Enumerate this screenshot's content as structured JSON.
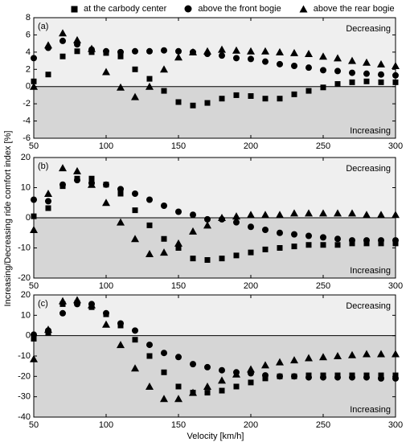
{
  "chart_data": {
    "ylabel": "Increasing/Decreasing ride comfort index [%]",
    "xlabel": "Velocity [km/h]",
    "legend": [
      {
        "name": "at the carbody center",
        "marker": "square"
      },
      {
        "name": "above the front bogie",
        "marker": "circle"
      },
      {
        "name": "above the rear bogie",
        "marker": "triangle"
      }
    ],
    "colors": {
      "upper_region": "#efefef",
      "lower_region": "#d6d6d6",
      "marker": "#000000"
    },
    "panels": [
      {
        "type": "scatter",
        "panel_label": "(a)",
        "upper_text": "Decreasing",
        "lower_text": "Increasing",
        "xlim": [
          50,
          300
        ],
        "ylim": [
          -6,
          8
        ],
        "x_ticks": [
          50,
          100,
          150,
          200,
          250,
          300
        ],
        "y_ticks": [
          -6,
          -4,
          -2,
          0,
          2,
          4,
          6,
          8
        ],
        "x": [
          50,
          60,
          70,
          80,
          90,
          100,
          110,
          120,
          130,
          140,
          150,
          160,
          170,
          180,
          190,
          200,
          210,
          220,
          230,
          240,
          250,
          260,
          270,
          280,
          290,
          300
        ],
        "series": [
          {
            "name": "at the carbody center",
            "marker": "square",
            "values": [
              0.6,
              1.4,
              3.5,
              4.1,
              4.0,
              3.9,
              3.5,
              2.0,
              0.9,
              -0.5,
              -1.8,
              -2.2,
              -1.9,
              -1.4,
              -1.0,
              -1.1,
              -1.4,
              -1.4,
              -0.9,
              -0.5,
              -0.1,
              0.3,
              0.5,
              0.6,
              0.5,
              0.5
            ]
          },
          {
            "name": "above the front bogie",
            "marker": "circle",
            "values": [
              3.3,
              4.5,
              5.3,
              4.9,
              4.3,
              4.1,
              4.0,
              4.1,
              4.1,
              4.2,
              4.1,
              4.0,
              3.8,
              3.6,
              3.3,
              3.2,
              2.9,
              2.6,
              2.4,
              2.2,
              1.9,
              1.8,
              1.6,
              1.5,
              1.4,
              1.3
            ]
          },
          {
            "name": "above the rear bogie",
            "marker": "triangle",
            "values": [
              0.0,
              4.8,
              6.2,
              5.4,
              4.4,
              1.7,
              -0.1,
              -1.2,
              0.0,
              2.0,
              3.4,
              4.0,
              4.1,
              4.3,
              4.2,
              4.1,
              4.1,
              4.0,
              3.9,
              3.8,
              3.5,
              3.3,
              3.0,
              2.8,
              2.6,
              2.4
            ]
          }
        ]
      },
      {
        "type": "scatter",
        "panel_label": "(b)",
        "upper_text": "Decreasing",
        "lower_text": "Increasing",
        "xlim": [
          50,
          300
        ],
        "ylim": [
          -20,
          20
        ],
        "x_ticks": [
          50,
          100,
          150,
          200,
          250,
          300
        ],
        "y_ticks": [
          -20,
          -10,
          0,
          10,
          20
        ],
        "x": [
          50,
          60,
          70,
          80,
          90,
          100,
          110,
          120,
          130,
          140,
          150,
          160,
          170,
          180,
          190,
          200,
          210,
          220,
          230,
          240,
          250,
          260,
          270,
          280,
          290,
          300
        ],
        "series": [
          {
            "name": "at the carbody center",
            "marker": "square",
            "values": [
              0.5,
              3.2,
              10.5,
              13.0,
              13.0,
              11.0,
              8.0,
              2.5,
              -2.5,
              -7.0,
              -10.0,
              -13.5,
              -14.0,
              -13.5,
              -12.5,
              -11.5,
              -10.5,
              -10.0,
              -9.5,
              -9.0,
              -9.0,
              -9.0,
              -8.5,
              -8.5,
              -8.5,
              -8.5
            ]
          },
          {
            "name": "above the front bogie",
            "marker": "circle",
            "values": [
              6.0,
              5.5,
              11.0,
              12.5,
              11.5,
              11.0,
              9.5,
              8.0,
              6.0,
              4.0,
              2.0,
              1.0,
              -0.5,
              -0.5,
              -1.5,
              -3.0,
              -4.0,
              -5.0,
              -5.5,
              -6.0,
              -6.5,
              -7.0,
              -7.5,
              -7.5,
              -7.5,
              -7.5
            ]
          },
          {
            "name": "above the rear bogie",
            "marker": "triangle",
            "values": [
              -4.0,
              8.0,
              16.5,
              15.5,
              11.0,
              5.0,
              -1.5,
              -7.0,
              -12.0,
              -11.5,
              -8.5,
              -4.5,
              -2.5,
              0.0,
              0.5,
              1.0,
              1.0,
              1.0,
              1.5,
              1.5,
              1.5,
              1.5,
              1.5,
              1.0,
              1.0,
              1.0
            ]
          }
        ]
      },
      {
        "type": "scatter",
        "panel_label": "(c)",
        "upper_text": "Decreasing",
        "lower_text": "Increasing",
        "xlim": [
          50,
          300
        ],
        "ylim": [
          -40,
          20
        ],
        "x_ticks": [
          50,
          100,
          150,
          200,
          250,
          300
        ],
        "y_ticks": [
          -40,
          -30,
          -20,
          -10,
          0,
          10,
          20
        ],
        "x": [
          50,
          60,
          70,
          80,
          90,
          100,
          110,
          120,
          130,
          140,
          150,
          160,
          170,
          180,
          190,
          200,
          210,
          220,
          230,
          240,
          250,
          260,
          270,
          280,
          290,
          300
        ],
        "series": [
          {
            "name": "at the carbody center",
            "marker": "square",
            "values": [
              -1.5,
              1.5,
              15.5,
              16.0,
              14.0,
              10.5,
              5.0,
              -2.0,
              -10.0,
              -18.0,
              -25.0,
              -28.0,
              -28.0,
              -27.0,
              -25.0,
              -23.0,
              -21.0,
              -20.0,
              -20.0,
              -19.5,
              -19.5,
              -19.5,
              -19.5,
              -19.5,
              -19.5,
              -19.5
            ]
          },
          {
            "name": "above the front bogie",
            "marker": "circle",
            "values": [
              0.5,
              2.5,
              11.0,
              15.5,
              15.5,
              11.0,
              6.0,
              2.5,
              -4.5,
              -8.5,
              -10.5,
              -14.0,
              -15.5,
              -17.0,
              -18.0,
              -18.5,
              -19.5,
              -20.0,
              -20.0,
              -20.5,
              -20.5,
              -20.5,
              -20.5,
              -20.5,
              -21.0,
              -21.0
            ]
          },
          {
            "name": "above the rear bogie",
            "marker": "triangle",
            "values": [
              -11.5,
              3.0,
              17.0,
              17.5,
              15.0,
              5.5,
              -4.5,
              -16.0,
              -25.0,
              -31.0,
              -31.0,
              -28.0,
              -25.0,
              -22.0,
              -19.0,
              -16.5,
              -14.5,
              -13.0,
              -12.0,
              -11.0,
              -10.5,
              -10.0,
              -9.5,
              -9.0,
              -9.0,
              -9.0
            ]
          }
        ]
      }
    ]
  }
}
